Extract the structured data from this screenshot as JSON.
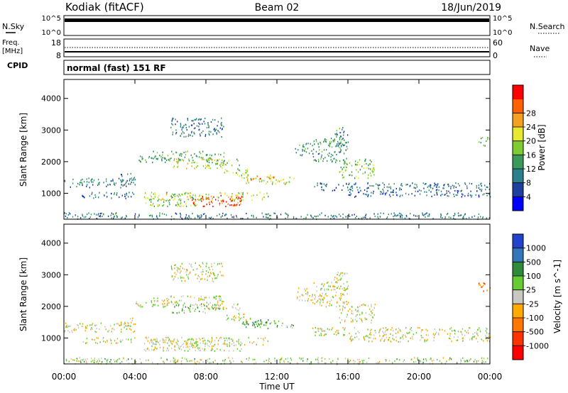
{
  "header": {
    "station": "Kodiak (fitACF)",
    "beam": "Beam 02",
    "date": "18/Jun/2019"
  },
  "noise_panel": {
    "left_label": "N.Sky",
    "right_label": "N.Search",
    "left_ticks": [
      "10^5",
      "10^0"
    ],
    "right_ticks": [
      "10^5",
      "10^0"
    ]
  },
  "freq_panel": {
    "left_label_1": "Freq.",
    "left_label_2": "[MHz]",
    "right_label": "Nave",
    "left_ticks": [
      "18",
      "8"
    ],
    "right_ticks": [
      "60",
      "0"
    ]
  },
  "cpid": {
    "label": "CPID",
    "text": "normal (fast) 151 RF"
  },
  "colors": {
    "power": [
      "#0000ff",
      "#1e3fa0",
      "#2e7f8c",
      "#3a9a5a",
      "#7fcc30",
      "#e8e830",
      "#f4a020",
      "#ff6000",
      "#ff0000"
    ],
    "velocity": [
      "#2244cc",
      "#3377bb",
      "#2e8b3a",
      "#66cc33",
      "#c8c8c0",
      "#ffaa00",
      "#ff7700",
      "#ff3300",
      "#ff0000"
    ]
  },
  "chart_data": [
    {
      "type": "heatmap",
      "panel": "power",
      "ylabel": "Slant Range [km]",
      "xlabel": "",
      "x_ticks": [
        "00:00",
        "04:00",
        "08:00",
        "12:00",
        "16:00",
        "20:00",
        "00:00"
      ],
      "y_ticks": [
        1000,
        2000,
        3000,
        4000
      ],
      "ylim": [
        180,
        4600
      ],
      "xlim_hours": [
        0,
        24
      ],
      "colorbar_label": "Power [dB]",
      "colorbar_ticks": [
        4,
        8,
        12,
        16,
        20,
        24,
        28
      ],
      "regions": [
        {
          "t": [
            0.0,
            4.0
          ],
          "r": [
            1200,
            1500
          ],
          "level": 0.28
        },
        {
          "t": [
            3.0,
            4.0
          ],
          "r": [
            1400,
            1650
          ],
          "level": 0.3
        },
        {
          "t": [
            0.0,
            24.0
          ],
          "r": [
            200,
            400
          ],
          "level": 0.3
        },
        {
          "t": [
            1.0,
            4.0
          ],
          "r": [
            850,
            1050
          ],
          "level": 0.25
        },
        {
          "t": [
            4.0,
            6.0
          ],
          "r": [
            2000,
            2200
          ],
          "level": 0.35
        },
        {
          "t": [
            5.0,
            9.0
          ],
          "r": [
            2050,
            2350
          ],
          "level": 0.4
        },
        {
          "t": [
            6.0,
            9.0
          ],
          "r": [
            1800,
            2100
          ],
          "level": 0.6
        },
        {
          "t": [
            8.0,
            10.0
          ],
          "r": [
            1900,
            2100
          ],
          "level": 0.45
        },
        {
          "t": [
            9.0,
            10.5
          ],
          "r": [
            1550,
            1800
          ],
          "level": 0.5
        },
        {
          "t": [
            10.0,
            13.0
          ],
          "r": [
            1300,
            1550
          ],
          "level": 0.58
        },
        {
          "t": [
            10.5,
            12.0
          ],
          "r": [
            1450,
            1600
          ],
          "level": 0.75
        },
        {
          "t": [
            4.5,
            11.5
          ],
          "r": [
            800,
            1050
          ],
          "level": 0.55
        },
        {
          "t": [
            7.0,
            10.0
          ],
          "r": [
            600,
            950
          ],
          "level": 0.9
        },
        {
          "t": [
            4.5,
            7.5
          ],
          "r": [
            600,
            1000
          ],
          "level": 0.5
        },
        {
          "t": [
            13.0,
            14.0
          ],
          "r": [
            2200,
            2600
          ],
          "level": 0.4
        },
        {
          "t": [
            14.0,
            16.0
          ],
          "r": [
            2000,
            2800
          ],
          "level": 0.35
        },
        {
          "t": [
            15.2,
            16.0
          ],
          "r": [
            2500,
            3100
          ],
          "level": 0.32
        },
        {
          "t": [
            15.5,
            17.5
          ],
          "r": [
            1500,
            2100
          ],
          "level": 0.45
        },
        {
          "t": [
            14.0,
            24.0
          ],
          "r": [
            1100,
            1350
          ],
          "level": 0.25
        },
        {
          "t": [
            16.0,
            24.0
          ],
          "r": [
            900,
            1100
          ],
          "level": 0.22
        },
        {
          "t": [
            6.0,
            9.0
          ],
          "r": [
            2800,
            3400
          ],
          "level": 0.28
        },
        {
          "t": [
            23.3,
            24.0
          ],
          "r": [
            2500,
            2800
          ],
          "level": 0.45
        }
      ]
    },
    {
      "type": "heatmap",
      "panel": "velocity",
      "ylabel": "Slant Range [km]",
      "xlabel": "Time UT",
      "x_ticks": [
        "00:00",
        "04:00",
        "08:00",
        "12:00",
        "16:00",
        "20:00",
        "00:00"
      ],
      "y_ticks": [
        1000,
        2000,
        3000,
        4000
      ],
      "ylim": [
        180,
        4600
      ],
      "xlim_hours": [
        0,
        24
      ],
      "colorbar_label": "Velocity [m s^-1]",
      "colorbar_ticks": [
        1000,
        500,
        100,
        25,
        -25,
        -100,
        -500,
        -1000
      ],
      "regions": [
        {
          "t": [
            0.0,
            4.0
          ],
          "r": [
            1200,
            1500
          ],
          "level": 0.5
        },
        {
          "t": [
            3.0,
            4.0
          ],
          "r": [
            1400,
            1650
          ],
          "level": 0.5
        },
        {
          "t": [
            0.0,
            24.0
          ],
          "r": [
            200,
            400
          ],
          "level": 0.45
        },
        {
          "t": [
            1.0,
            4.0
          ],
          "r": [
            850,
            1050
          ],
          "level": 0.5
        },
        {
          "t": [
            4.0,
            6.0
          ],
          "r": [
            2000,
            2200
          ],
          "level": 0.5
        },
        {
          "t": [
            5.0,
            9.0
          ],
          "r": [
            2050,
            2350
          ],
          "level": 0.5
        },
        {
          "t": [
            6.0,
            9.0
          ],
          "r": [
            1800,
            2100
          ],
          "level": 0.4
        },
        {
          "t": [
            8.0,
            10.0
          ],
          "r": [
            1900,
            2100
          ],
          "level": 0.5
        },
        {
          "t": [
            9.0,
            10.5
          ],
          "r": [
            1550,
            1800
          ],
          "level": 0.5
        },
        {
          "t": [
            10.0,
            13.0
          ],
          "r": [
            1300,
            1550
          ],
          "level": 0.35
        },
        {
          "t": [
            10.5,
            12.0
          ],
          "r": [
            1450,
            1600
          ],
          "level": 0.32
        },
        {
          "t": [
            4.5,
            11.5
          ],
          "r": [
            800,
            1050
          ],
          "level": 0.5
        },
        {
          "t": [
            7.0,
            10.0
          ],
          "r": [
            600,
            950
          ],
          "level": 0.5
        },
        {
          "t": [
            4.5,
            7.5
          ],
          "r": [
            600,
            1000
          ],
          "level": 0.5
        },
        {
          "t": [
            13.0,
            14.0
          ],
          "r": [
            2200,
            2600
          ],
          "level": 0.5
        },
        {
          "t": [
            14.0,
            16.0
          ],
          "r": [
            2000,
            2800
          ],
          "level": 0.5
        },
        {
          "t": [
            15.2,
            16.0
          ],
          "r": [
            2500,
            3100
          ],
          "level": 0.5
        },
        {
          "t": [
            15.5,
            17.5
          ],
          "r": [
            1500,
            2100
          ],
          "level": 0.5
        },
        {
          "t": [
            14.0,
            24.0
          ],
          "r": [
            1100,
            1350
          ],
          "level": 0.5
        },
        {
          "t": [
            16.0,
            24.0
          ],
          "r": [
            900,
            1100
          ],
          "level": 0.5
        },
        {
          "t": [
            6.0,
            9.0
          ],
          "r": [
            2800,
            3400
          ],
          "level": 0.5
        },
        {
          "t": [
            23.3,
            24.0
          ],
          "r": [
            2500,
            2800
          ],
          "level": 0.72
        }
      ]
    }
  ]
}
